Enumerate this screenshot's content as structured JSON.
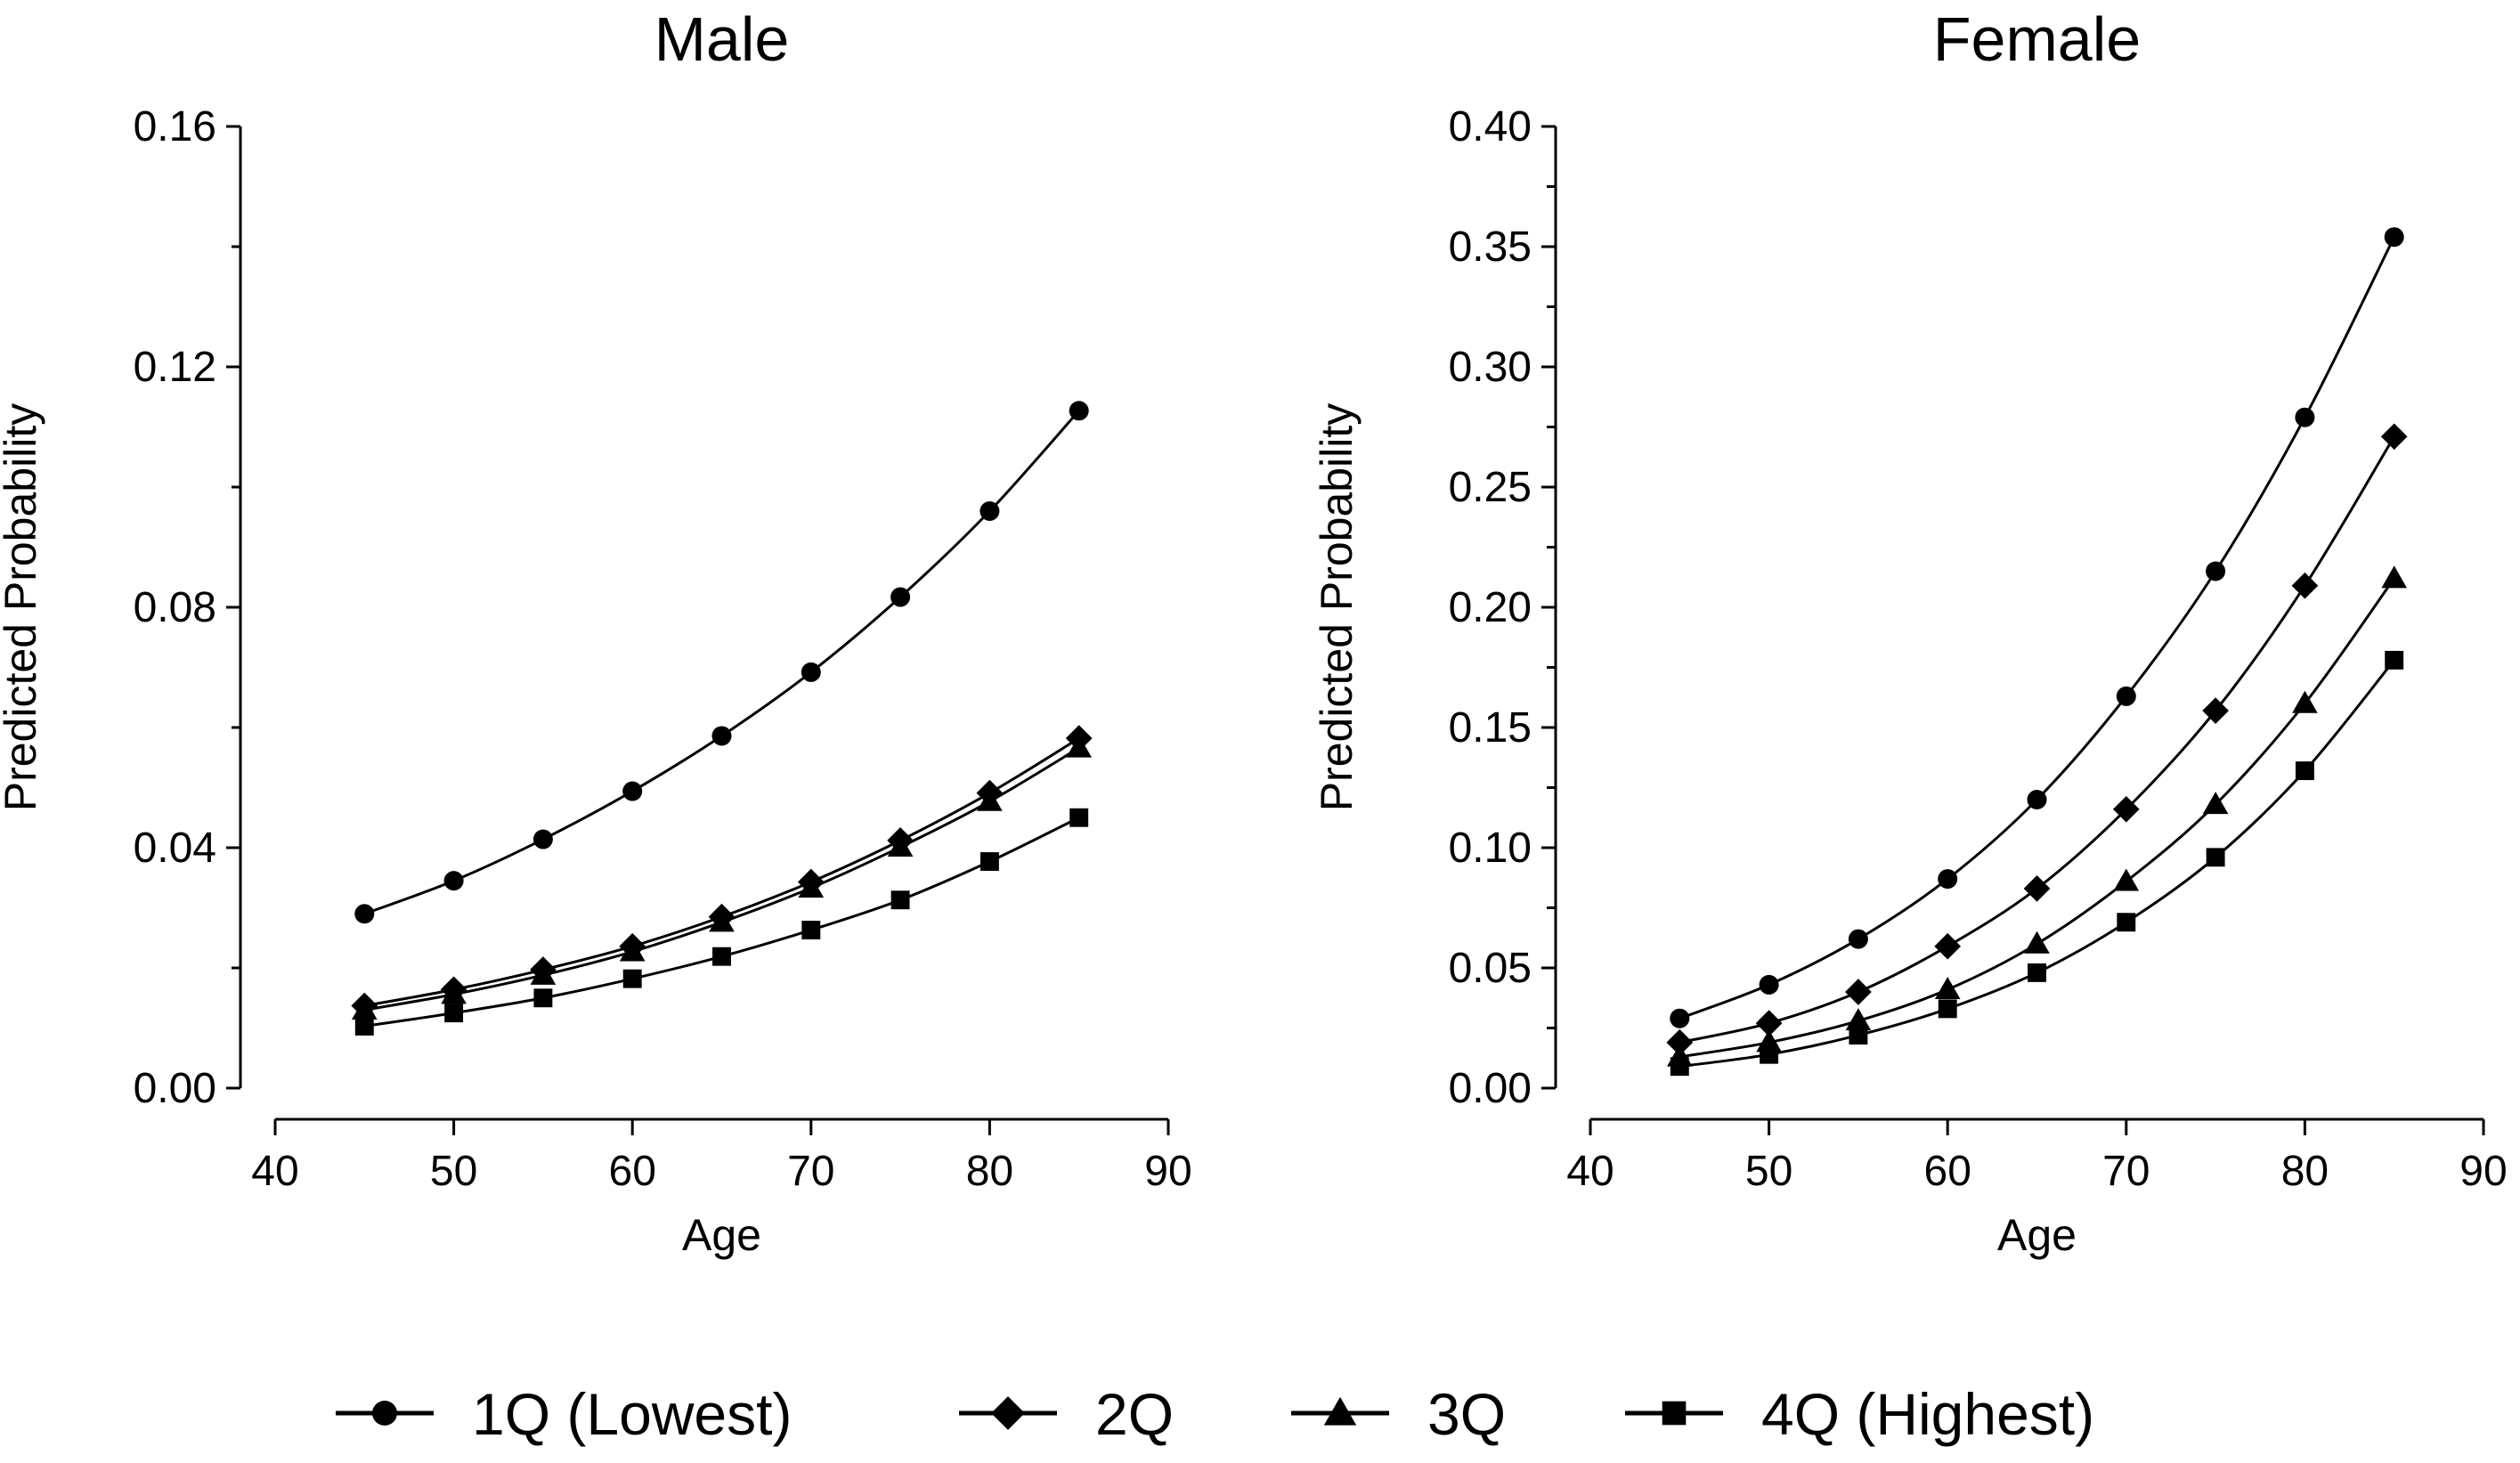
{
  "chart_data": [
    {
      "type": "line",
      "title": "Male",
      "xlabel": "Age",
      "ylabel": "Predicted Probability",
      "xlim": [
        40,
        90
      ],
      "ylim": [
        0,
        0.16
      ],
      "xticks": [
        "40",
        "50",
        "60",
        "70",
        "80",
        "90"
      ],
      "yticks": [
        "0.00",
        "0.04",
        "0.08",
        "0.12",
        "0.16"
      ],
      "x": [
        45,
        50,
        55,
        60,
        65,
        70,
        75,
        80,
        85
      ],
      "series": [
        {
          "name": "1Q (Lowest)",
          "marker": "circle",
          "values": [
            0.029,
            0.0345,
            0.0414,
            0.0494,
            0.0586,
            0.0692,
            0.0817,
            0.096,
            0.1127
          ]
        },
        {
          "name": "2Q",
          "marker": "diamond",
          "values": [
            0.0137,
            0.0164,
            0.0197,
            0.0236,
            0.0285,
            0.0343,
            0.0412,
            0.0491,
            0.0582
          ]
        },
        {
          "name": "3Q",
          "marker": "triangle",
          "values": [
            0.013,
            0.0156,
            0.0188,
            0.0227,
            0.0276,
            0.0333,
            0.0401,
            0.0477,
            0.0566
          ]
        },
        {
          "name": "4Q (Highest)",
          "marker": "square",
          "values": [
            0.0103,
            0.0125,
            0.015,
            0.0182,
            0.0219,
            0.0263,
            0.0313,
            0.0377,
            0.045
          ]
        }
      ]
    },
    {
      "type": "line",
      "title": "Female",
      "xlabel": "Age",
      "ylabel": "Predicted Probability",
      "xlim": [
        40,
        90
      ],
      "ylim": [
        0,
        0.4
      ],
      "xticks": [
        "40",
        "50",
        "60",
        "70",
        "80",
        "90"
      ],
      "yticks": [
        "0.00",
        "0.05",
        "0.10",
        "0.15",
        "0.20",
        "0.25",
        "0.30",
        "0.35",
        "0.40"
      ],
      "x": [
        45,
        50,
        55,
        60,
        65,
        70,
        75,
        80,
        85
      ],
      "series": [
        {
          "name": "1Q (Lowest)",
          "marker": "circle",
          "values": [
            0.029,
            0.043,
            0.062,
            0.087,
            0.12,
            0.163,
            0.215,
            0.279,
            0.354
          ]
        },
        {
          "name": "2Q",
          "marker": "diamond",
          "values": [
            0.019,
            0.027,
            0.04,
            0.059,
            0.083,
            0.116,
            0.157,
            0.209,
            0.271
          ]
        },
        {
          "name": "3Q",
          "marker": "triangle",
          "values": [
            0.013,
            0.019,
            0.028,
            0.041,
            0.06,
            0.086,
            0.118,
            0.16,
            0.212
          ]
        },
        {
          "name": "4Q (Highest)",
          "marker": "square",
          "values": [
            0.009,
            0.014,
            0.022,
            0.033,
            0.048,
            0.069,
            0.096,
            0.132,
            0.178
          ]
        }
      ]
    }
  ],
  "legend": {
    "placement": "bottom",
    "items": [
      {
        "label": "1Q (Lowest)",
        "marker": "circle"
      },
      {
        "label": "2Q",
        "marker": "diamond"
      },
      {
        "label": "3Q",
        "marker": "triangle"
      },
      {
        "label": "4Q (Highest)",
        "marker": "square"
      }
    ]
  },
  "colors": {
    "line": "#000000",
    "marker": "#000000",
    "background": "#ffffff"
  }
}
